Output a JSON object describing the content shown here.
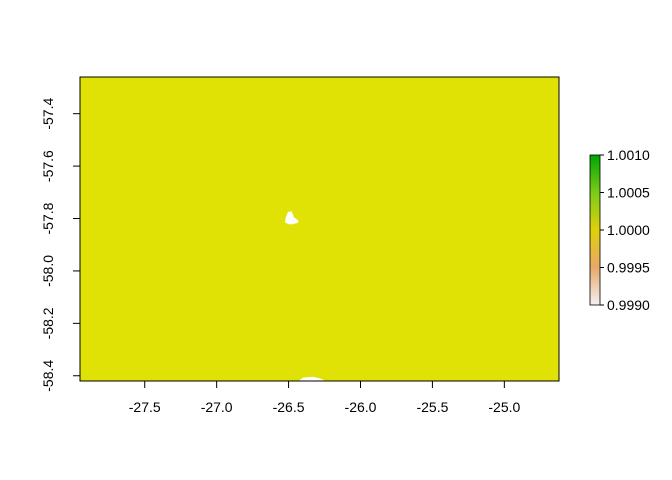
{
  "chart_data": {
    "type": "heatmap",
    "title": "",
    "xlabel": "",
    "ylabel": "",
    "xlim": [
      -27.95,
      -24.62
    ],
    "ylim": [
      -58.42,
      -57.26
    ],
    "x_ticks": [
      -27.5,
      -27.0,
      -26.5,
      -26.0,
      -25.5,
      -25.0
    ],
    "x_tick_labels": [
      "-27.5",
      "-27.0",
      "-26.5",
      "-26.0",
      "-25.5",
      "-25.0"
    ],
    "y_ticks": [
      -57.4,
      -57.6,
      -57.8,
      -58.0,
      -58.2,
      -58.4
    ],
    "y_tick_labels": [
      "-57.4",
      "-57.6",
      "-57.8",
      "-58.0",
      "-58.2",
      "-58.4"
    ],
    "raster_value": 1.0,
    "raster_color": "#E0E206",
    "missing_regions": [
      {
        "name": "island-mask",
        "polygon": [
          [
            -26.52,
            -57.797
          ],
          [
            -26.505,
            -57.775
          ],
          [
            -26.478,
            -57.772
          ],
          [
            -26.463,
            -57.795
          ],
          [
            -26.43,
            -57.808
          ],
          [
            -26.435,
            -57.816
          ],
          [
            -26.47,
            -57.822
          ],
          [
            -26.5,
            -57.822
          ],
          [
            -26.525,
            -57.815
          ]
        ]
      },
      {
        "name": "bottom-edge-mask",
        "polygon": [
          [
            -26.43,
            -58.42
          ],
          [
            -26.4,
            -58.407
          ],
          [
            -26.33,
            -58.404
          ],
          [
            -26.27,
            -58.412
          ],
          [
            -26.25,
            -58.42
          ]
        ]
      }
    ],
    "legend": {
      "placement": "right",
      "min": 0.999,
      "max": 1.001,
      "ticks": [
        0.999,
        0.9995,
        1.0,
        1.0005,
        1.001
      ],
      "tick_labels": [
        "0.9990",
        "0.9995",
        "1.0000",
        "1.0005",
        "1.0010"
      ],
      "gradient": [
        {
          "value": 0.999,
          "color": "#F2F2F2"
        },
        {
          "value": 0.9995,
          "color": "#E8A86A"
        },
        {
          "value": 1.0,
          "color": "#E0D00A"
        },
        {
          "value": 1.0005,
          "color": "#7BCB1A"
        },
        {
          "value": 1.001,
          "color": "#00A600"
        }
      ]
    }
  }
}
